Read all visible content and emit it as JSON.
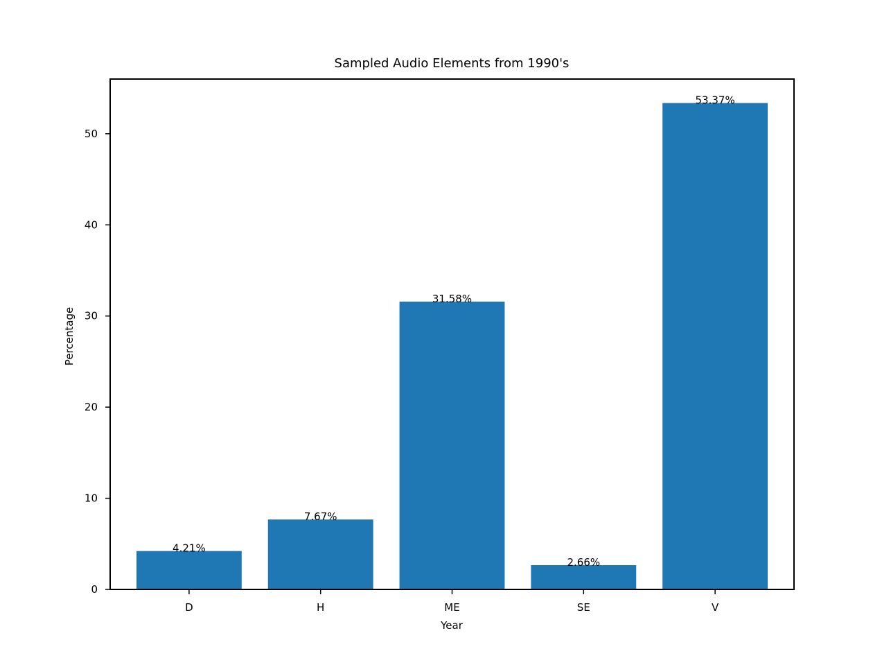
{
  "chart_data": {
    "type": "bar",
    "title": "Sampled Audio Elements from 1990's",
    "xlabel": "Year",
    "ylabel": "Percentage",
    "categories": [
      "D",
      "H",
      "ME",
      "SE",
      "V"
    ],
    "values": [
      4.21,
      7.67,
      31.58,
      2.66,
      53.37
    ],
    "data_labels": [
      "4.21%",
      "7.67%",
      "31.58%",
      "2.66%",
      "53.37%"
    ],
    "ylim": [
      0,
      56.0
    ],
    "yticks": [
      0,
      10,
      20,
      30,
      40,
      50
    ],
    "grid": false,
    "bar_color": "#1f77b4"
  }
}
